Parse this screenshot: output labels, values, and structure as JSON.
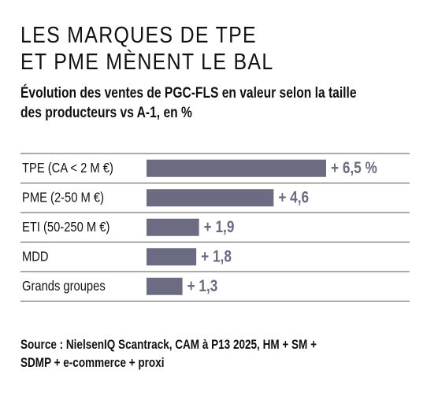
{
  "title_line1": "LES MARQUES DE TPE",
  "title_line2": "ET PME MÈNENT LE BAL",
  "subtitle_line1": "Évolution des ventes de PGC-FLS en valeur selon la taille",
  "subtitle_line2": "des producteurs vs A-1, en %",
  "source_line1": "Source : NielsenIQ Scantrack, CAM à P13 2025, HM + SM +",
  "source_line2": "SDMP + e-commerce + proxi",
  "chart_data": {
    "type": "bar",
    "orientation": "horizontal",
    "categories": [
      "TPE (CA < 2 M €)",
      "PME (2-50 M €)",
      "ETI (50-250 M €)",
      "MDD",
      "Grands groupes"
    ],
    "values": [
      6.5,
      4.6,
      1.9,
      1.8,
      1.3
    ],
    "data_labels": [
      "+ 6,5 %",
      "+ 4,6",
      "+ 1,9",
      "+ 1,8",
      "+ 1,3"
    ],
    "bar_color": "#6b6b82",
    "label_color": "#6b6b82",
    "grid": false
  }
}
